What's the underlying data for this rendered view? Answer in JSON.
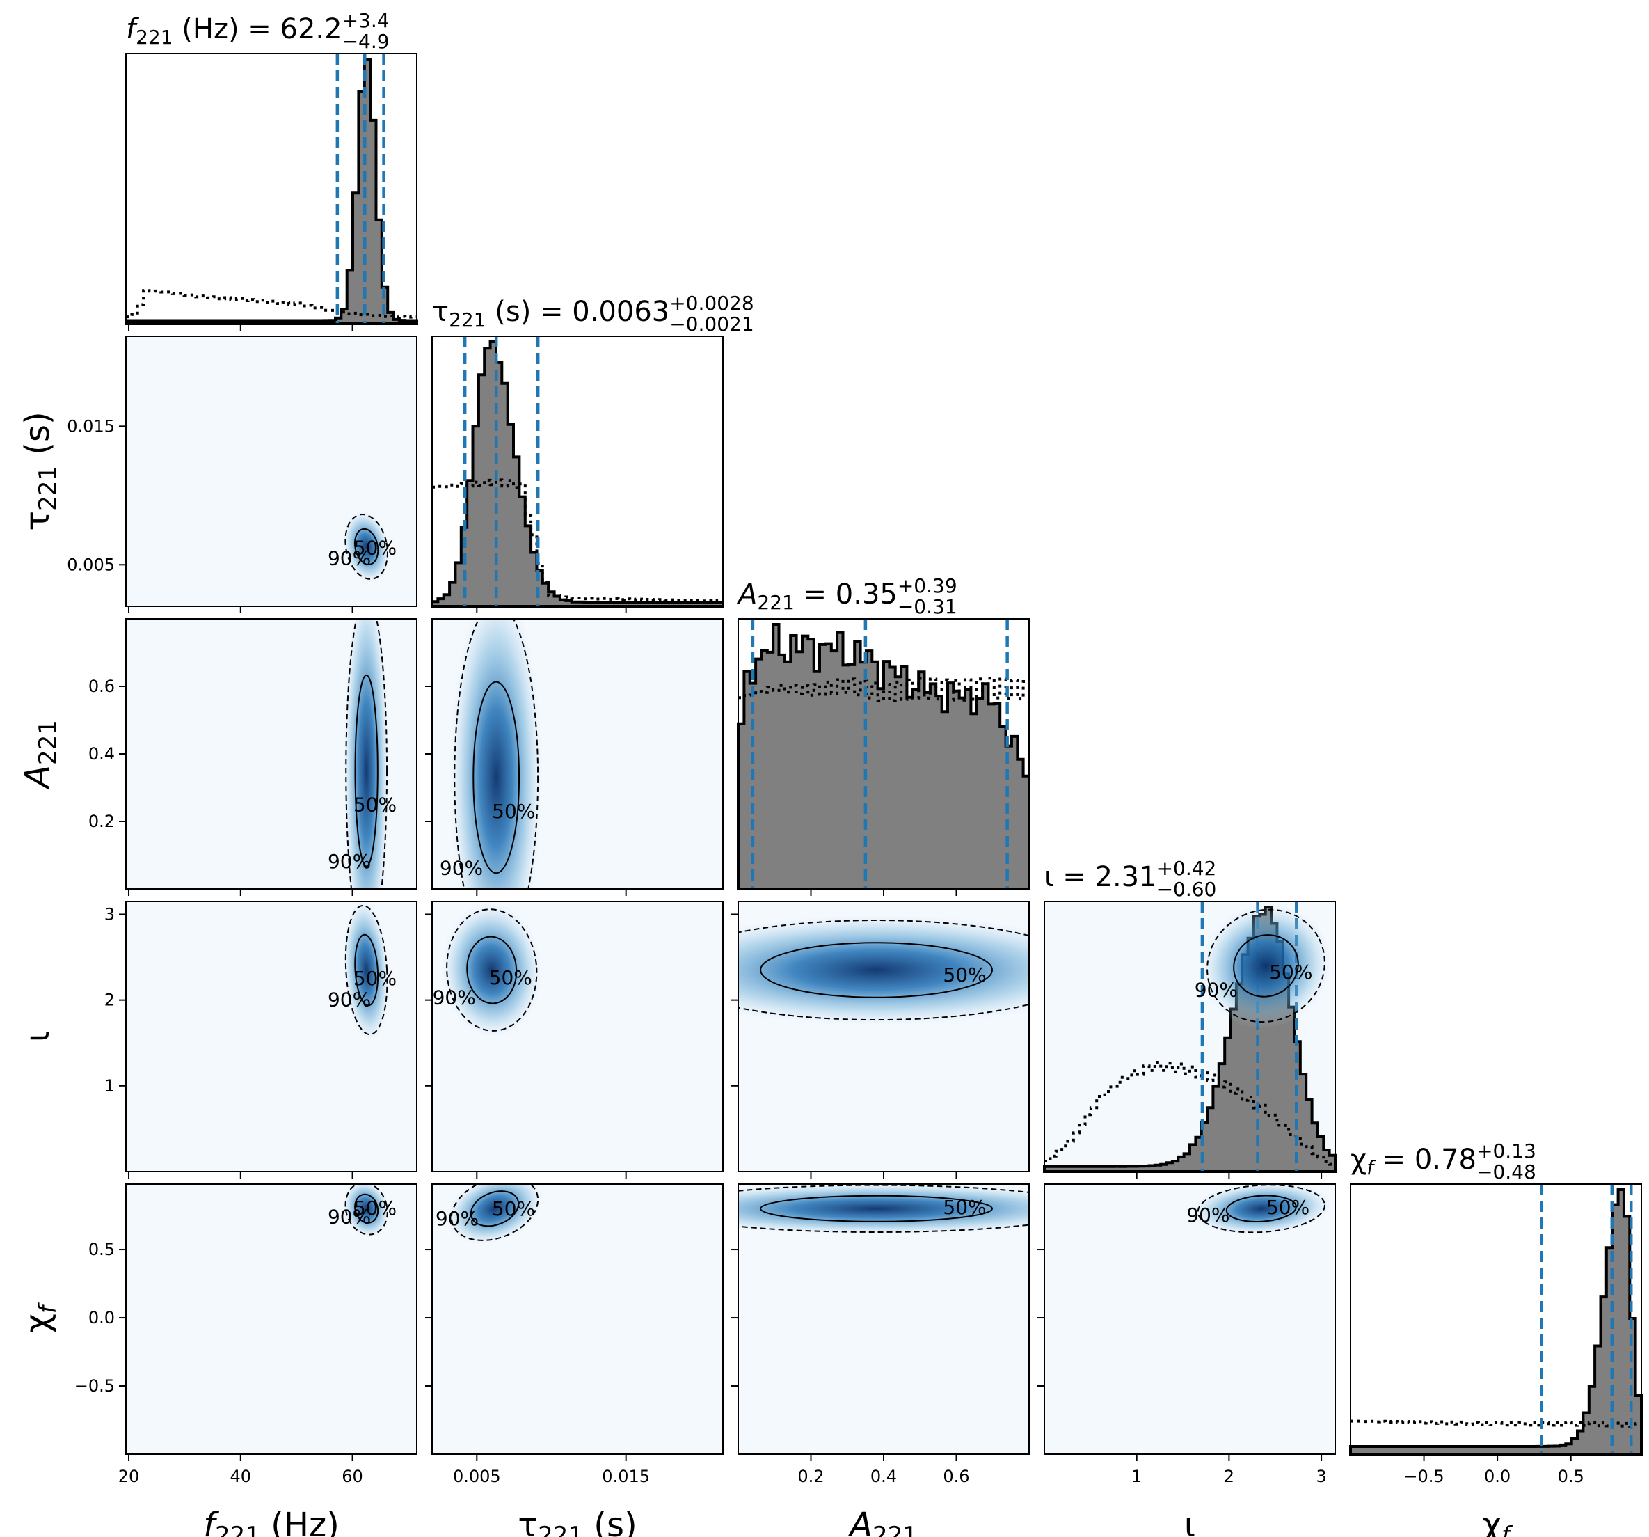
{
  "chart_data": {
    "type": "corner",
    "parameters": [
      {
        "symbol": "f",
        "sub": "221",
        "unit": " (Hz)",
        "range": [
          19.5,
          71.5
        ],
        "ticks": [
          20,
          40,
          60
        ],
        "tick_labels": [
          "20",
          "40",
          "60"
        ],
        "title": {
          "median": "62.2",
          "plus": "+3.4",
          "minus": "−4.9"
        },
        "quantiles": [
          57.3,
          62.2,
          65.6
        ],
        "posterior": {
          "mode": 62.5,
          "sigma": 1.6,
          "tail": 0.012
        },
        "prior": {
          "bins": [
            [
              19.5,
              0.022
            ],
            [
              21.5,
              0.038
            ],
            [
              23,
              0.125
            ],
            [
              26,
              0.122
            ],
            [
              32,
              0.105
            ],
            [
              38,
              0.095
            ],
            [
              44,
              0.085
            ],
            [
              50,
              0.075
            ],
            [
              54,
              0.06
            ],
            [
              57,
              0.045
            ],
            [
              62,
              0.035
            ],
            [
              66,
              0.028
            ],
            [
              71.5,
              0.025
            ]
          ]
        }
      },
      {
        "symbol": "τ",
        "sub": "221",
        "unit": " (s)",
        "range": [
          0.002,
          0.0215
        ],
        "ticks": [
          0.005,
          0.015
        ],
        "tick_labels": [
          "0.005",
          "0.015"
        ],
        "title": {
          "median": "0.0063",
          "plus": "+0.0028",
          "minus": "−0.0021"
        },
        "quantiles": [
          0.0042,
          0.0063,
          0.0091
        ],
        "posterior": {
          "mode": 0.0059,
          "sigma_left": 0.0011,
          "sigma_right": 0.0016,
          "tail": 0.015
        },
        "prior": {
          "bins": [
            [
              0.002,
              0.45
            ],
            [
              0.0045,
              0.46
            ],
            [
              0.006,
              0.47
            ],
            [
              0.008,
              0.46
            ],
            [
              0.0095,
              0.1
            ],
            [
              0.01,
              0.04
            ],
            [
              0.012,
              0.03
            ],
            [
              0.0215,
              0.02
            ]
          ]
        }
      },
      {
        "symbol": "A",
        "sub": "221",
        "unit": "",
        "range": [
          0.0,
          0.8
        ],
        "ticks": [
          0.2,
          0.4,
          0.6
        ],
        "tick_labels": [
          "0.2",
          "0.4",
          "0.6"
        ],
        "title": {
          "median": "0.35",
          "plus": "+0.39",
          "minus": "−0.31"
        },
        "quantiles": [
          0.04,
          0.35,
          0.74
        ],
        "posterior": {
          "shape": "flat_decline",
          "levels": [
            [
              0.0,
              0.5
            ],
            [
              0.03,
              0.82
            ],
            [
              0.1,
              0.9
            ],
            [
              0.3,
              0.88
            ],
            [
              0.45,
              0.78
            ],
            [
              0.55,
              0.72
            ],
            [
              0.7,
              0.7
            ],
            [
              0.75,
              0.55
            ],
            [
              0.8,
              0.4
            ]
          ]
        },
        "prior": {
          "bins": [
            [
              0.0,
              0.72
            ],
            [
              0.1,
              0.76
            ],
            [
              0.2,
              0.75
            ],
            [
              0.3,
              0.77
            ],
            [
              0.4,
              0.74
            ],
            [
              0.5,
              0.76
            ],
            [
              0.6,
              0.75
            ],
            [
              0.7,
              0.76
            ],
            [
              0.8,
              0.75
            ]
          ]
        }
      },
      {
        "symbol": "ι",
        "sub": "",
        "unit": "",
        "range": [
          0.0,
          3.15
        ],
        "ticks": [
          1,
          2,
          3
        ],
        "tick_labels": [
          "1",
          "2",
          "3"
        ],
        "title": {
          "median": "2.31",
          "plus": "+0.42",
          "minus": "−0.60"
        },
        "quantiles": [
          1.71,
          2.31,
          2.73
        ],
        "posterior": {
          "mode": 2.4,
          "sigma_left": 0.35,
          "sigma_right": 0.28,
          "tail": 0.02
        },
        "prior": {
          "bins": [
            [
              0.0,
              0.03
            ],
            [
              0.3,
              0.12
            ],
            [
              0.6,
              0.28
            ],
            [
              0.9,
              0.36
            ],
            [
              1.2,
              0.4
            ],
            [
              1.5,
              0.39
            ],
            [
              1.8,
              0.36
            ],
            [
              2.1,
              0.3
            ],
            [
              2.4,
              0.23
            ],
            [
              2.7,
              0.14
            ],
            [
              3.0,
              0.05
            ],
            [
              3.15,
              0.02
            ]
          ]
        }
      },
      {
        "symbol": "χ",
        "sub": "f",
        "unit": "",
        "range": [
          -1.0,
          0.98
        ],
        "ticks": [
          -0.5,
          0.0,
          0.5
        ],
        "tick_labels": [
          "−0.5",
          "0.0",
          "0.5"
        ],
        "title": {
          "median": "0.78",
          "plus": "+0.13",
          "minus": "−0.48"
        },
        "quantiles": [
          0.3,
          0.78,
          0.91
        ],
        "posterior": {
          "mode": 0.85,
          "sigma_left": 0.12,
          "sigma_right": 0.06,
          "tail": 0.03
        },
        "prior": {
          "bins": [
            [
              -1.0,
              0.125
            ],
            [
              -0.5,
              0.12
            ],
            [
              0.0,
              0.115
            ],
            [
              0.5,
              0.115
            ],
            [
              0.98,
              0.11
            ]
          ]
        }
      }
    ],
    "contours": {
      "levels": [
        "50%",
        "90%"
      ],
      "pairs": [
        {
          "row": 1,
          "col": 0,
          "center": [
            62.5,
            0.0063
          ],
          "sigma": [
            1.7,
            0.0011
          ],
          "rho": 0.35
        },
        {
          "row": 2,
          "col": 0,
          "center": [
            62.5,
            0.35
          ],
          "sigma": [
            1.7,
            0.24
          ],
          "rho": 0.0,
          "elong": true
        },
        {
          "row": 2,
          "col": 1,
          "center": [
            0.0063,
            0.33
          ],
          "sigma": [
            0.0013,
            0.24
          ],
          "rho": 0.0,
          "elong": true
        },
        {
          "row": 3,
          "col": 0,
          "center": [
            62.5,
            2.35
          ],
          "sigma": [
            1.7,
            0.35
          ],
          "rho": 0.1
        },
        {
          "row": 3,
          "col": 1,
          "center": [
            0.006,
            2.35
          ],
          "sigma": [
            0.0014,
            0.33
          ],
          "rho": 0.1
        },
        {
          "row": 3,
          "col": 2,
          "center": [
            0.38,
            2.35
          ],
          "sigma": [
            0.27,
            0.27
          ],
          "rho": 0.0,
          "wide": true
        },
        {
          "row": 3,
          "col": 3,
          "center": [
            2.4,
            2.4
          ],
          "sigma": [
            0.3,
            0.3
          ],
          "rho": 0.99
        },
        {
          "row": 4,
          "col": 0,
          "center": [
            62.5,
            0.8
          ],
          "sigma": [
            1.7,
            0.09
          ],
          "rho": 0.5
        },
        {
          "row": 4,
          "col": 1,
          "center": [
            0.0062,
            0.8
          ],
          "sigma": [
            0.0014,
            0.1
          ],
          "rho": 0.7,
          "banana": true
        },
        {
          "row": 4,
          "col": 2,
          "center": [
            0.38,
            0.8
          ],
          "sigma": [
            0.27,
            0.08
          ],
          "rho": 0.0,
          "wide": true
        },
        {
          "row": 4,
          "col": 3,
          "center": [
            2.35,
            0.8
          ],
          "sigma": [
            0.32,
            0.08
          ],
          "rho": 0.1
        }
      ]
    },
    "colors": {
      "hist_fill": "#808080",
      "hist_line": "#000000",
      "quantile": "#1f77b4",
      "density": "#08519c",
      "background": "#f4f9fe"
    }
  }
}
